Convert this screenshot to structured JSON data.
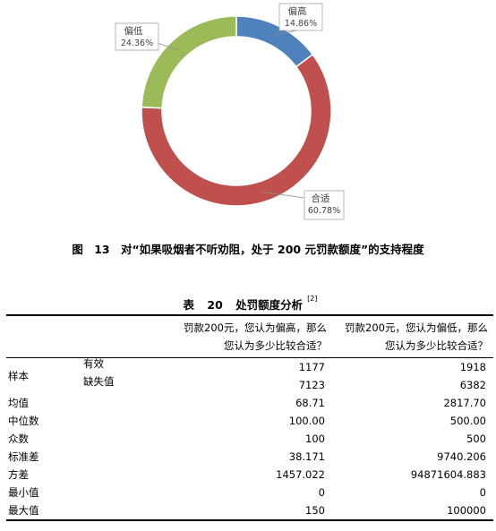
{
  "chart_data": {
    "type": "pie",
    "variant": "donut",
    "slices": [
      {
        "label": "偏高",
        "value": 14.86,
        "display": "14.86%",
        "color": "#4f81bd"
      },
      {
        "label": "合适",
        "value": 60.78,
        "display": "60.78%",
        "color": "#c0504d"
      },
      {
        "label": "偏低",
        "value": 24.36,
        "display": "24.36%",
        "color": "#9bbb59"
      }
    ],
    "start_angle_deg": 0,
    "direction": "clockwise",
    "legend": "none"
  },
  "figure_caption": {
    "prefix": "图",
    "number": "13",
    "text": "对“如果吸烟者不听劝阻，处于 200 元罚款额度”的支持程度"
  },
  "table": {
    "title_prefix": "表",
    "title_number": "20",
    "title_text": "处罚额度分析",
    "title_note": "[2]",
    "col1_line1": "罚款200元，您认为偏高，那么",
    "col1_line2": "您认为多少比较合适？",
    "col2_line1": "罚款200元，您认为偏低，那么",
    "col2_line2": "您认为多少比较合适？",
    "rows": [
      {
        "label": "样本",
        "sub": "有效",
        "v1": "1177",
        "v2": "1918"
      },
      {
        "label": "",
        "sub": "缺失值",
        "v1": "7123",
        "v2": "6382"
      },
      {
        "label": "均值",
        "sub": "",
        "v1": "68.71",
        "v2": "2817.70"
      },
      {
        "label": "中位数",
        "sub": "",
        "v1": "100.00",
        "v2": "500.00"
      },
      {
        "label": "众数",
        "sub": "",
        "v1": "100",
        "v2": "500"
      },
      {
        "label": "标准差",
        "sub": "",
        "v1": "38.171",
        "v2": "9740.206"
      },
      {
        "label": "方差",
        "sub": "",
        "v1": "1457.022",
        "v2": "94871604.883"
      },
      {
        "label": "最小值",
        "sub": "",
        "v1": "0",
        "v2": "0"
      },
      {
        "label": "最大值",
        "sub": "",
        "v1": "150",
        "v2": "100000"
      }
    ]
  }
}
